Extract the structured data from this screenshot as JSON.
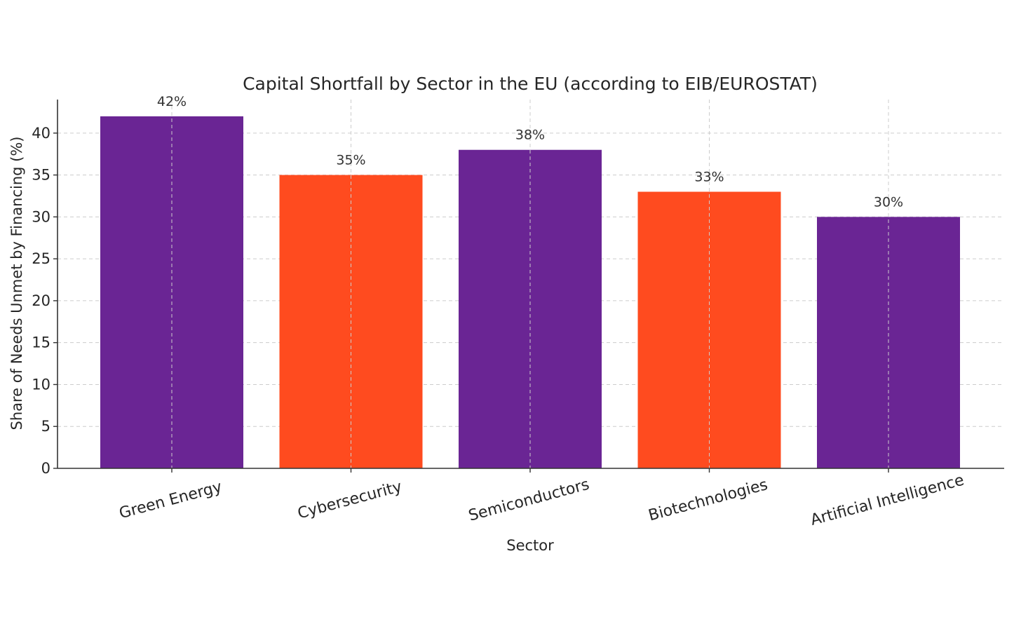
{
  "chart_data": {
    "type": "bar",
    "title": "Capital Shortfall by Sector in the EU (according to EIB/EUROSTAT)",
    "xlabel": "Sector",
    "ylabel": "Share of Needs Unmet by Financing (%)",
    "categories": [
      "Green Energy",
      "Cybersecurity",
      "Semiconductors",
      "Biotechnologies",
      "Artificial Intelligence"
    ],
    "values": [
      42,
      35,
      38,
      33,
      30
    ],
    "data_labels": [
      "42%",
      "35%",
      "38%",
      "33%",
      "30%"
    ],
    "bar_colors": [
      "#6a2594",
      "#ff4b1f",
      "#6a2594",
      "#ff4b1f",
      "#6a2594"
    ],
    "ylim": [
      0,
      44
    ],
    "yticks": [
      0,
      5,
      10,
      15,
      20,
      25,
      30,
      35,
      40
    ],
    "grid": true,
    "category_label_rotation_deg": -15
  }
}
